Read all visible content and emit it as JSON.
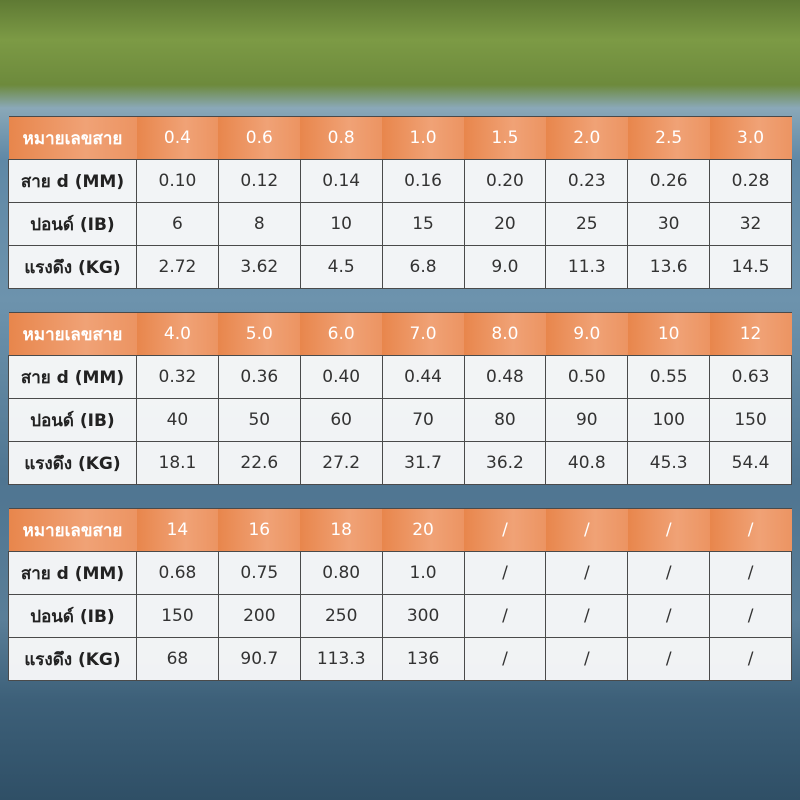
{
  "tables": [
    {
      "header": [
        "หมายเลขสาย",
        "0.4",
        "0.6",
        "0.8",
        "1.0",
        "1.5",
        "2.0",
        "2.5",
        "3.0"
      ],
      "rows": [
        [
          "สาย d (MM)",
          "0.10",
          "0.12",
          "0.14",
          "0.16",
          "0.20",
          "0.23",
          "0.26",
          "0.28"
        ],
        [
          "ปอนด์ (IB)",
          "6",
          "8",
          "10",
          "15",
          "20",
          "25",
          "30",
          "32"
        ],
        [
          "แรงดึง (KG)",
          "2.72",
          "3.62",
          "4.5",
          "6.8",
          "9.0",
          "11.3",
          "13.6",
          "14.5"
        ]
      ]
    },
    {
      "header": [
        "หมายเลขสาย",
        "4.0",
        "5.0",
        "6.0",
        "7.0",
        "8.0",
        "9.0",
        "10",
        "12"
      ],
      "rows": [
        [
          "สาย d (MM)",
          "0.32",
          "0.36",
          "0.40",
          "0.44",
          "0.48",
          "0.50",
          "0.55",
          "0.63"
        ],
        [
          "ปอนด์ (IB)",
          "40",
          "50",
          "60",
          "70",
          "80",
          "90",
          "100",
          "150"
        ],
        [
          "แรงดึง (KG)",
          "18.1",
          "22.6",
          "27.2",
          "31.7",
          "36.2",
          "40.8",
          "45.3",
          "54.4"
        ]
      ]
    },
    {
      "header": [
        "หมายเลขสาย",
        "14",
        "16",
        "18",
        "20",
        "/",
        "/",
        "/",
        "/"
      ],
      "rows": [
        [
          "สาย d (MM)",
          "0.68",
          "0.75",
          "0.80",
          "1.0",
          "/",
          "/",
          "/",
          "/"
        ],
        [
          "ปอนด์ (IB)",
          "150",
          "200",
          "250",
          "300",
          "/",
          "/",
          "/",
          "/"
        ],
        [
          "แรงดึง (KG)",
          "68",
          "90.7",
          "113.3",
          "136",
          "/",
          "/",
          "/",
          "/"
        ]
      ]
    }
  ]
}
